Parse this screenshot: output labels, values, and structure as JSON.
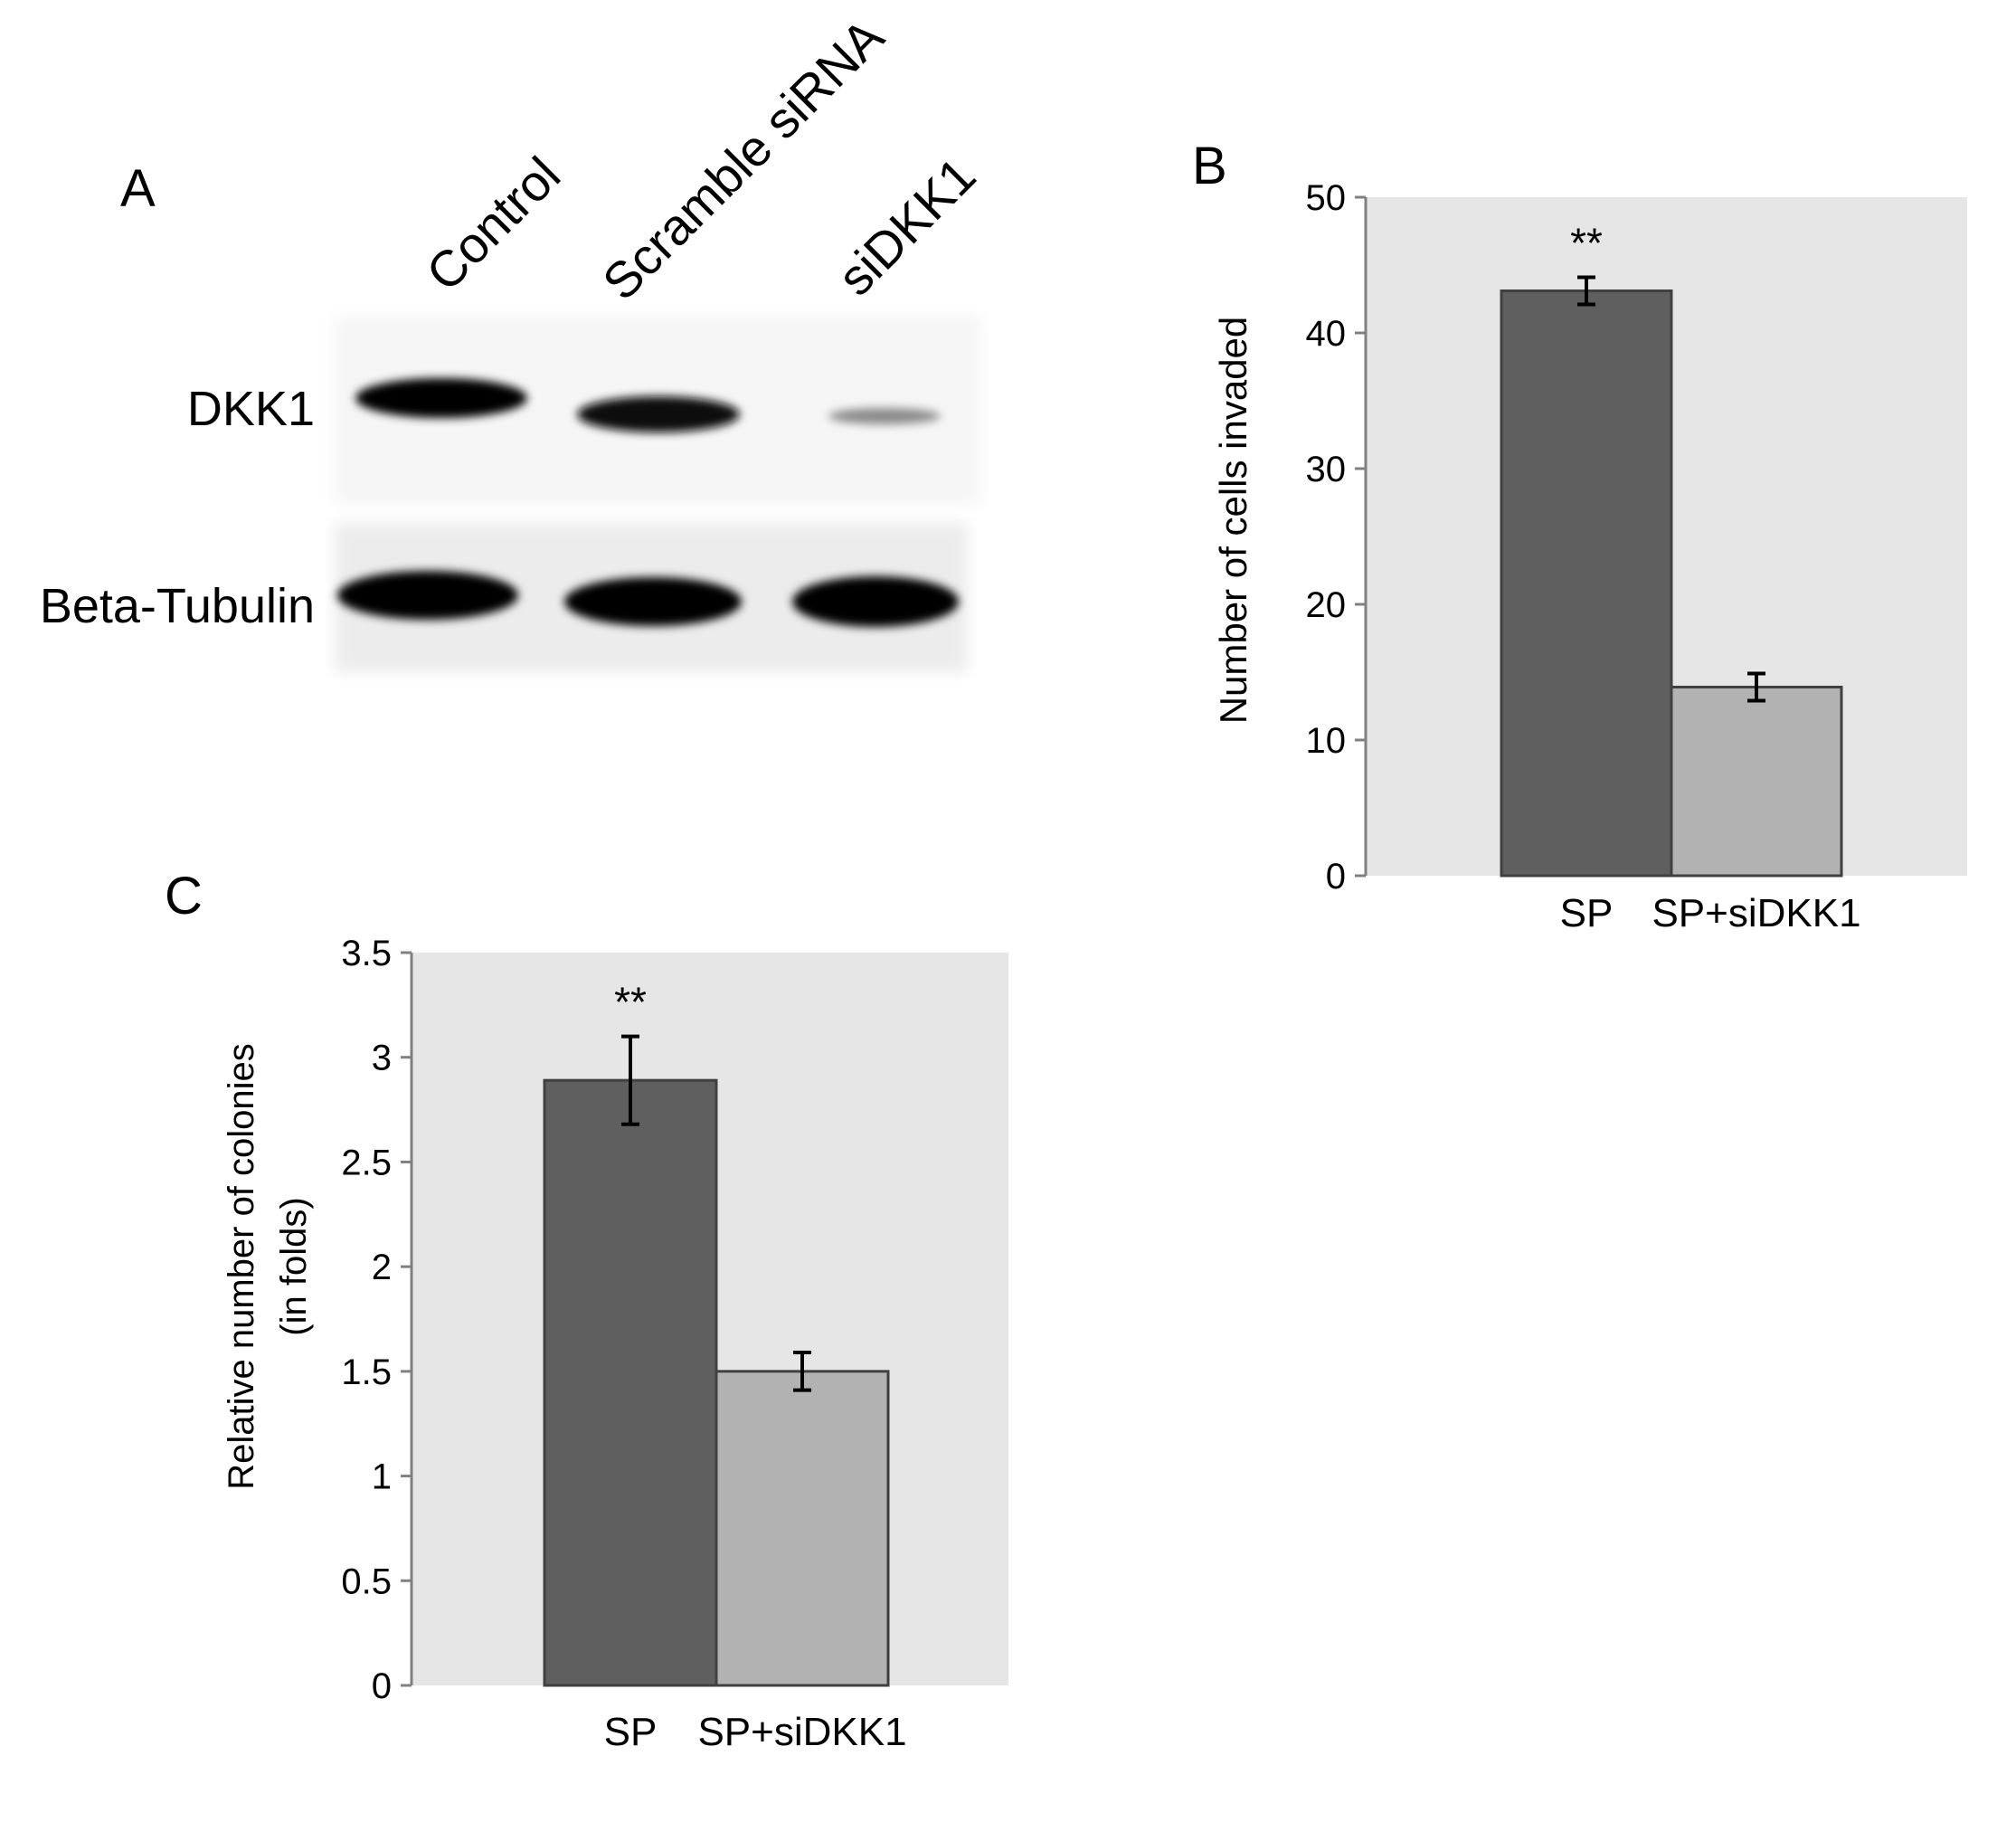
{
  "colors": {
    "plot_background": "#e6e6e6",
    "bar_sp": "#5f5f5f",
    "bar_sp_sidkk1": "#b2b2b2",
    "bar_outline": "#404040",
    "axis": "#808080"
  },
  "western_blot": {
    "panel_label": "A",
    "lanes": [
      "Control",
      "Scramble siRNA",
      "siDKK1"
    ],
    "rows": [
      {
        "label": "DKK1",
        "band_intensity": [
          1.0,
          0.85,
          0.25
        ]
      },
      {
        "label": "Beta-Tubulin",
        "band_intensity": [
          1.0,
          1.0,
          1.0
        ]
      }
    ]
  },
  "chart_data": [
    {
      "panel_label": "B",
      "type": "bar",
      "categories": [
        "SP",
        "SP+siDKK1"
      ],
      "values": [
        43.1,
        13.9
      ],
      "errors": [
        1.0,
        1.0
      ],
      "annotations": [
        "**",
        ""
      ],
      "ylabel": "Number of cells invaded",
      "xlabel": "",
      "ylim": [
        0,
        50
      ],
      "yticks": [
        "0",
        "10",
        "20",
        "30",
        "40",
        "50"
      ],
      "ytick_values": [
        0,
        10,
        20,
        30,
        40,
        50
      ],
      "grid": false
    },
    {
      "panel_label": "C",
      "type": "bar",
      "categories": [
        "SP",
        "SP+siDKK1"
      ],
      "values": [
        2.89,
        1.5
      ],
      "errors": [
        0.21,
        0.09
      ],
      "annotations": [
        "**",
        ""
      ],
      "ylabel": [
        "Relative number of colonies",
        "(in folds)"
      ],
      "xlabel": "",
      "ylim": [
        0,
        3.5
      ],
      "yticks": [
        "0",
        "0.5",
        "1",
        "1.5",
        "2",
        "2.5",
        "3",
        "3.5"
      ],
      "ytick_values": [
        0,
        0.5,
        1,
        1.5,
        2,
        2.5,
        3,
        3.5
      ],
      "grid": false
    }
  ]
}
